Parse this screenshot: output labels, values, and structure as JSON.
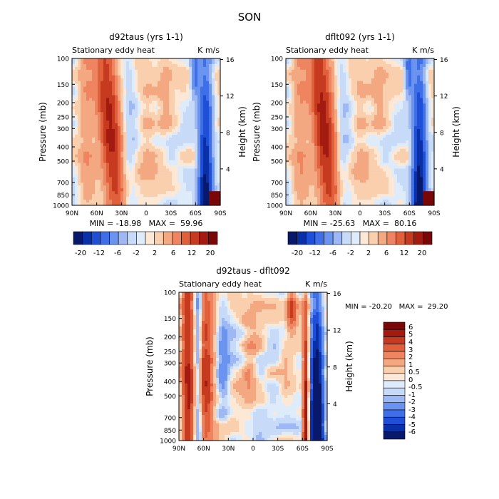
{
  "page_title": "SON",
  "chart_data": [
    {
      "type": "heatmap",
      "title": "d92taus (yrs 1-1)",
      "subtitle_left": "Stationary eddy heat",
      "subtitle_right": "K m/s",
      "xlabel": "",
      "ylabel": "Pressure (mb)",
      "ylabel_right": "Height (km)",
      "x_ticks": [
        "90N",
        "60N",
        "30N",
        "0",
        "30S",
        "60S",
        "90S"
      ],
      "y_ticks": [
        "100",
        "150",
        "200",
        "250",
        "300",
        "400",
        "500",
        "700",
        "850",
        "1000"
      ],
      "y_tick_values": [
        100,
        150,
        200,
        250,
        300,
        400,
        500,
        700,
        850,
        1000
      ],
      "y_right_ticks": [
        "16",
        "12",
        "8",
        "4"
      ],
      "y_right_values": [
        16,
        12,
        8,
        4
      ],
      "min_max": "MIN = -18.98   MAX =  59.96",
      "min": -18.98,
      "max": 59.96,
      "colorbar_labels": [
        "-20",
        "-12",
        "-6",
        "-2",
        "2",
        "6",
        "12",
        "20"
      ]
    },
    {
      "type": "heatmap",
      "title": "dflt092 (yrs 1-1)",
      "subtitle_left": "Stationary eddy heat",
      "subtitle_right": "K m/s",
      "xlabel": "",
      "ylabel": "Pressure (mb)",
      "ylabel_right": "Height (km)",
      "x_ticks": [
        "90N",
        "60N",
        "30N",
        "0",
        "30S",
        "60S",
        "90S"
      ],
      "y_ticks": [
        "100",
        "150",
        "200",
        "250",
        "300",
        "400",
        "500",
        "700",
        "850",
        "1000"
      ],
      "y_tick_values": [
        100,
        150,
        200,
        250,
        300,
        400,
        500,
        700,
        850,
        1000
      ],
      "y_right_ticks": [
        "16",
        "12",
        "8",
        "4"
      ],
      "y_right_values": [
        16,
        12,
        8,
        4
      ],
      "min_max": "MIN = -25.63   MAX =  80.16",
      "min": -25.63,
      "max": 80.16,
      "colorbar_labels": [
        "-20",
        "-12",
        "-6",
        "-2",
        "2",
        "6",
        "12",
        "20"
      ]
    },
    {
      "type": "heatmap",
      "title": "d92taus - dflt092",
      "subtitle_left": "Stationary eddy heat",
      "subtitle_right": "K m/s",
      "xlabel": "",
      "ylabel": "Pressure (mb)",
      "ylabel_right": "Height (km)",
      "x_ticks": [
        "90N",
        "60N",
        "30N",
        "0",
        "30S",
        "60S",
        "90S"
      ],
      "y_ticks": [
        "100",
        "150",
        "200",
        "250",
        "300",
        "400",
        "500",
        "700",
        "850",
        "1000"
      ],
      "y_tick_values": [
        100,
        150,
        200,
        250,
        300,
        400,
        500,
        700,
        850,
        1000
      ],
      "y_right_ticks": [
        "16",
        "12",
        "8",
        "4"
      ],
      "y_right_values": [
        16,
        12,
        8,
        4
      ],
      "min_max": "MIN = -20.20   MAX =  29.20",
      "min": -20.2,
      "max": 29.2,
      "colorbar_labels": [
        "6",
        "5",
        "4",
        "3",
        "2",
        "1",
        "0.5",
        "0",
        "-0.5",
        "-1",
        "-2",
        "-3",
        "-4",
        "-5",
        "-6"
      ]
    }
  ],
  "colors": {
    "axis": "#000000",
    "palette_diverging": [
      "#08196b",
      "#0a30a8",
      "#1f4fd6",
      "#3e6fe8",
      "#6b93f0",
      "#9db8f5",
      "#c7daf8",
      "#deebfb",
      "#fde8d6",
      "#f9cfae",
      "#f4a882",
      "#ee8460",
      "#e0603c",
      "#c63a20",
      "#a21a10",
      "#7a0707"
    ]
  }
}
